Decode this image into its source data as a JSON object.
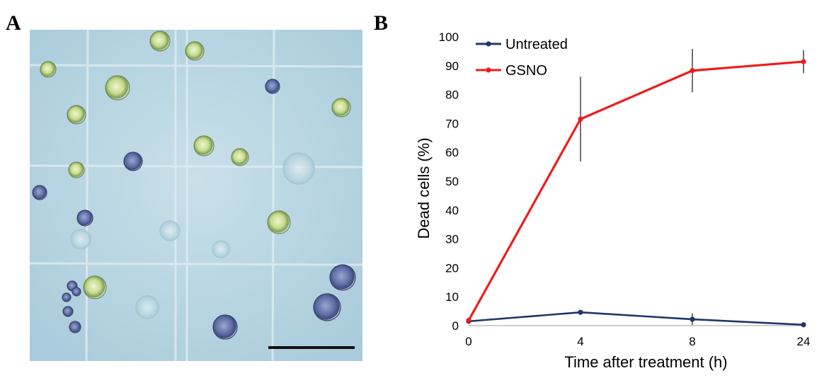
{
  "panels": {
    "a_label": "A",
    "b_label": "B"
  },
  "chart_data": {
    "type": "line",
    "title": "",
    "xlabel": "Time after treatment (h)",
    "ylabel": "Dead cells (%)",
    "categories": [
      "0",
      "4",
      "8",
      "24"
    ],
    "ylim": [
      0,
      100
    ],
    "yticks": [
      "0",
      "10",
      "20",
      "30",
      "40",
      "50",
      "60",
      "70",
      "80",
      "90",
      "100"
    ],
    "grid": false,
    "legend_position": "top-left",
    "series": [
      {
        "name": "Untreated",
        "color": "#1f3864",
        "values": [
          1.5,
          4.6,
          2.2,
          0.3
        ],
        "errors": [
          0,
          0.5,
          2.0,
          0.3
        ]
      },
      {
        "name": "GSNO",
        "color": "#ee1c1c",
        "values": [
          1.8,
          71.5,
          88.3,
          91.4
        ],
        "errors": [
          0,
          14.7,
          7.5,
          4.0
        ]
      }
    ]
  }
}
